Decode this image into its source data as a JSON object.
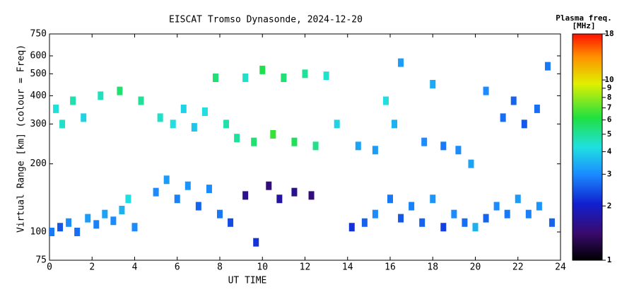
{
  "chart_data": {
    "type": "scatter",
    "title": "EISCAT Tromso Dynasonde, 2024-12-20",
    "xlabel": "UT TIME",
    "ylabel": "Virtual Range [km] (colour = Freq)",
    "xlim": [
      0,
      24
    ],
    "xticks": [
      0,
      2,
      4,
      6,
      8,
      10,
      12,
      14,
      16,
      18,
      20,
      22,
      24
    ],
    "ylim": [
      75,
      750
    ],
    "yticks": [
      75,
      100,
      200,
      300,
      400,
      500,
      600,
      750
    ],
    "log_y": true,
    "colorbar": {
      "title": [
        "Plasma freq.",
        "[MHz]"
      ],
      "lim": [
        1,
        18
      ],
      "ticks": [
        1,
        2,
        3,
        4,
        5,
        6,
        7,
        8,
        9,
        10,
        18
      ],
      "log": true
    },
    "x": [
      0.1,
      0.5,
      0.9,
      1.3,
      1.8,
      2.2,
      2.6,
      3.0,
      3.4,
      3.7,
      4.0,
      5.0,
      5.5,
      6.0,
      6.5,
      7.0,
      7.5,
      8.0,
      8.5,
      9.2,
      9.7,
      10.3,
      10.8,
      11.5,
      12.3,
      14.2,
      14.8,
      15.3,
      16.0,
      16.5,
      17.0,
      17.5,
      18.0,
      18.5,
      19.0,
      19.5,
      20.0,
      20.5,
      21.0,
      21.5,
      22.0,
      22.5,
      23.0,
      23.6,
      0.3,
      0.6,
      1.1,
      1.6,
      2.4,
      3.3,
      4.3,
      5.2,
      5.8,
      6.3,
      6.8,
      7.3,
      7.8,
      8.3,
      8.8,
      9.2,
      9.6,
      10.0,
      10.5,
      11.0,
      11.5,
      12.0,
      12.5,
      13.0,
      13.5,
      14.5,
      15.3,
      15.8,
      16.2,
      16.5,
      17.6,
      18.0,
      18.5,
      19.2,
      19.8,
      20.5,
      21.3,
      21.8,
      22.3,
      22.9,
      23.4
    ],
    "y": [
      100,
      105,
      110,
      100,
      115,
      108,
      120,
      112,
      125,
      140,
      105,
      150,
      170,
      140,
      160,
      130,
      155,
      120,
      110,
      145,
      90,
      160,
      140,
      150,
      145,
      105,
      110,
      120,
      140,
      115,
      130,
      110,
      140,
      105,
      120,
      110,
      105,
      115,
      130,
      120,
      140,
      120,
      130,
      110,
      350,
      300,
      380,
      320,
      400,
      420,
      380,
      320,
      300,
      350,
      290,
      340,
      480,
      300,
      260,
      480,
      250,
      520,
      270,
      480,
      250,
      500,
      240,
      490,
      300,
      240,
      230,
      380,
      300,
      560,
      250,
      450,
      240,
      230,
      200,
      420,
      320,
      380,
      300,
      350,
      540
    ],
    "freq": [
      2.8,
      2.5,
      3,
      2.7,
      3.2,
      2.9,
      3.3,
      3,
      3.5,
      4.2,
      3,
      3,
      3.2,
      2.9,
      3.1,
      2.6,
      3,
      2.8,
      2.4,
      1.6,
      2.2,
      1.5,
      1.7,
      1.6,
      1.5,
      2.2,
      2.6,
      3,
      2.8,
      2.5,
      2.9,
      2.6,
      3.1,
      2.3,
      3,
      2.7,
      3.5,
      2.6,
      3,
      2.8,
      3.2,
      2.9,
      3.1,
      2.6,
      4.3,
      4.5,
      4.8,
      4,
      4.6,
      5.5,
      5,
      4.5,
      4.2,
      4,
      3.8,
      4.2,
      5.5,
      4.8,
      5,
      4.5,
      5.5,
      6,
      6.5,
      5.5,
      5.8,
      5,
      5.2,
      4.4,
      4,
      3.3,
      3.2,
      4.2,
      3.5,
      3.2,
      3,
      3.4,
      2.8,
      3,
      3.3,
      3,
      2.7,
      2.6,
      2.5,
      2.7,
      2.8
    ]
  }
}
